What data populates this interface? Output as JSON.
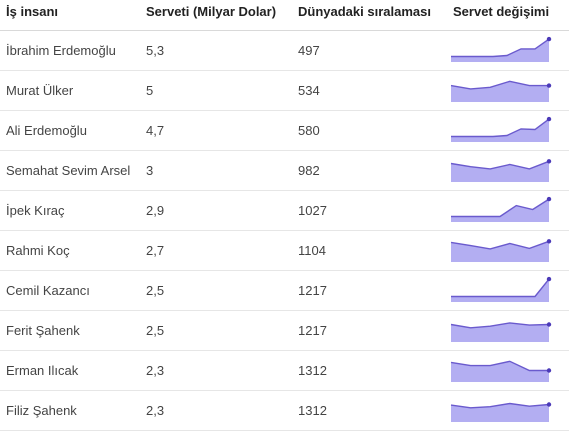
{
  "headers": {
    "name": "İş insanı",
    "wealth": "Serveti (Milyar Dolar)",
    "rank": "Dünyadaki sıralaması",
    "trend": "Servet değişimi"
  },
  "rows": [
    {
      "name": "İbrahim Erdemoğlu",
      "wealth": "5,3",
      "rank": "497"
    },
    {
      "name": "Murat Ülker",
      "wealth": "5",
      "rank": "534"
    },
    {
      "name": "Ali Erdemoğlu",
      "wealth": "4,7",
      "rank": "580"
    },
    {
      "name": "Semahat Sevim Arsel",
      "wealth": "3",
      "rank": "982"
    },
    {
      "name": "İpek Kıraç",
      "wealth": "2,9",
      "rank": "1027"
    },
    {
      "name": "Rahmi Koç",
      "wealth": "2,7",
      "rank": "1104"
    },
    {
      "name": "Cemil Kazancı",
      "wealth": "2,5",
      "rank": "1217"
    },
    {
      "name": "Ferit Şahenk",
      "wealth": "2,5",
      "rank": "1217"
    },
    {
      "name": "Erman Ilıcak",
      "wealth": "2,3",
      "rank": "1312"
    },
    {
      "name": "Filiz Şahenk",
      "wealth": "2,3",
      "rank": "1312"
    }
  ],
  "colors": {
    "line": "#6a5acd",
    "fill": "#b3aef2",
    "dot": "#4b3ab8"
  },
  "chart_data": {
    "type": "table",
    "columns": [
      "İş insanı",
      "Serveti (Milyar Dolar)",
      "Dünyadaki sıralaması",
      "Servet değişimi"
    ],
    "sparkline_type": "area",
    "sparklines": [
      {
        "name": "İbrahim Erdemoğlu",
        "values": [
          1.0,
          1.0,
          1.0,
          1.0,
          1.2,
          2.4,
          2.4,
          4.2
        ]
      },
      {
        "name": "Murat Ülker",
        "values": [
          3.0,
          2.4,
          2.7,
          3.8,
          3.0,
          3.0
        ]
      },
      {
        "name": "Ali Erdemoğlu",
        "values": [
          1.0,
          1.0,
          1.0,
          1.0,
          1.2,
          2.4,
          2.3,
          4.2
        ]
      },
      {
        "name": "Semahat Sevim Arsel",
        "values": [
          3.4,
          2.8,
          2.4,
          3.2,
          2.4,
          3.8
        ]
      },
      {
        "name": "İpek Kıraç",
        "values": [
          1.0,
          1.0,
          1.0,
          1.0,
          3.0,
          2.3,
          4.2
        ]
      },
      {
        "name": "Rahmi Koç",
        "values": [
          3.6,
          3.0,
          2.4,
          3.4,
          2.5,
          3.8
        ]
      },
      {
        "name": "Cemil Kazancı",
        "values": [
          1.0,
          1.0,
          1.0,
          1.0,
          1.0,
          1.0,
          1.0,
          4.2
        ]
      },
      {
        "name": "Ferit Şahenk",
        "values": [
          3.2,
          2.6,
          2.9,
          3.5,
          3.1,
          3.2
        ]
      },
      {
        "name": "Erman Ilıcak",
        "values": [
          3.6,
          3.0,
          3.0,
          3.8,
          2.1,
          2.1
        ]
      },
      {
        "name": "Filiz Şahenk",
        "values": [
          3.1,
          2.6,
          2.8,
          3.4,
          2.9,
          3.2
        ]
      }
    ]
  }
}
